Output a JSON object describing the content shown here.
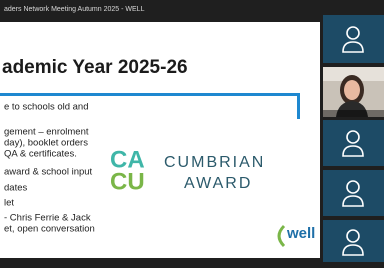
{
  "header": {
    "title": "aders Network Meeting Autumn 2025 - WELL"
  },
  "slide": {
    "title": "ademic Year 2025-26",
    "bullets": [
      "e to schools old and",
      "gement – enrolment",
      "day), booklet orders",
      "QA & certificates.",
      "award & school input",
      "dates",
      "let",
      "- Chris Ferrie & Jack",
      "et, open conversation"
    ],
    "logo": {
      "mark_top": "CA",
      "mark_bottom": "CU",
      "name_top": "CUMBRIAN",
      "name_bottom": "AWARD"
    },
    "brand": "well"
  }
}
